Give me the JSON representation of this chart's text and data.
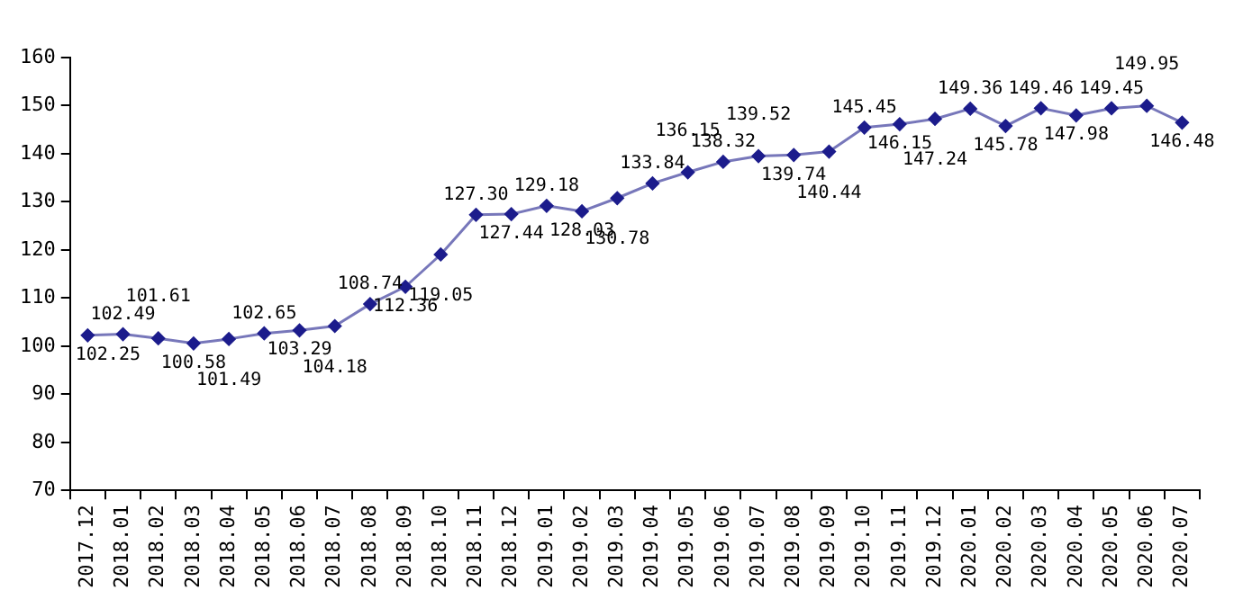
{
  "chart_data": {
    "type": "line",
    "categories": [
      "2017.12",
      "2018.01",
      "2018.02",
      "2018.03",
      "2018.04",
      "2018.05",
      "2018.06",
      "2018.07",
      "2018.08",
      "2018.09",
      "2018.10",
      "2018.11",
      "2018.12",
      "2019.01",
      "2019.02",
      "2019.03",
      "2019.04",
      "2019.05",
      "2019.06",
      "2019.07",
      "2019.08",
      "2019.09",
      "2019.10",
      "2019.11",
      "2019.12",
      "2020.01",
      "2020.02",
      "2020.03",
      "2020.04",
      "2020.05",
      "2020.06",
      "2020.07"
    ],
    "series": [
      {
        "color": "#1c1c8c",
        "values": [
          102.25,
          102.49,
          101.61,
          100.58,
          101.49,
          102.65,
          103.29,
          104.18,
          108.74,
          112.36,
          119.05,
          127.3,
          127.44,
          129.18,
          128.03,
          130.78,
          133.84,
          136.15,
          138.32,
          139.52,
          139.74,
          140.44,
          145.45,
          146.15,
          147.24,
          149.36,
          145.78,
          149.46,
          147.98,
          149.45,
          149.95,
          146.48
        ],
        "value_labels": [
          "102.25",
          "102.49",
          "101.61",
          "100.58",
          "101.49",
          "102.65",
          "103.29",
          "104.18",
          "108.74",
          "112.36",
          "119.05",
          "127.30",
          "127.44",
          "129.18",
          "128.03",
          "130.78",
          "133.84",
          "136.15",
          "138.32",
          "139.52",
          "139.74",
          "140.44",
          "145.45",
          "146.15",
          "147.24",
          "149.36",
          "145.78",
          "149.46",
          "147.98",
          "149.45",
          "149.95",
          "146.48"
        ]
      }
    ],
    "ylim": [
      70,
      160
    ],
    "yticks": [
      70,
      80,
      90,
      100,
      110,
      120,
      130,
      140,
      150,
      160
    ],
    "grid": false,
    "legend": false,
    "marker": "diamond",
    "line_style": "solid"
  }
}
